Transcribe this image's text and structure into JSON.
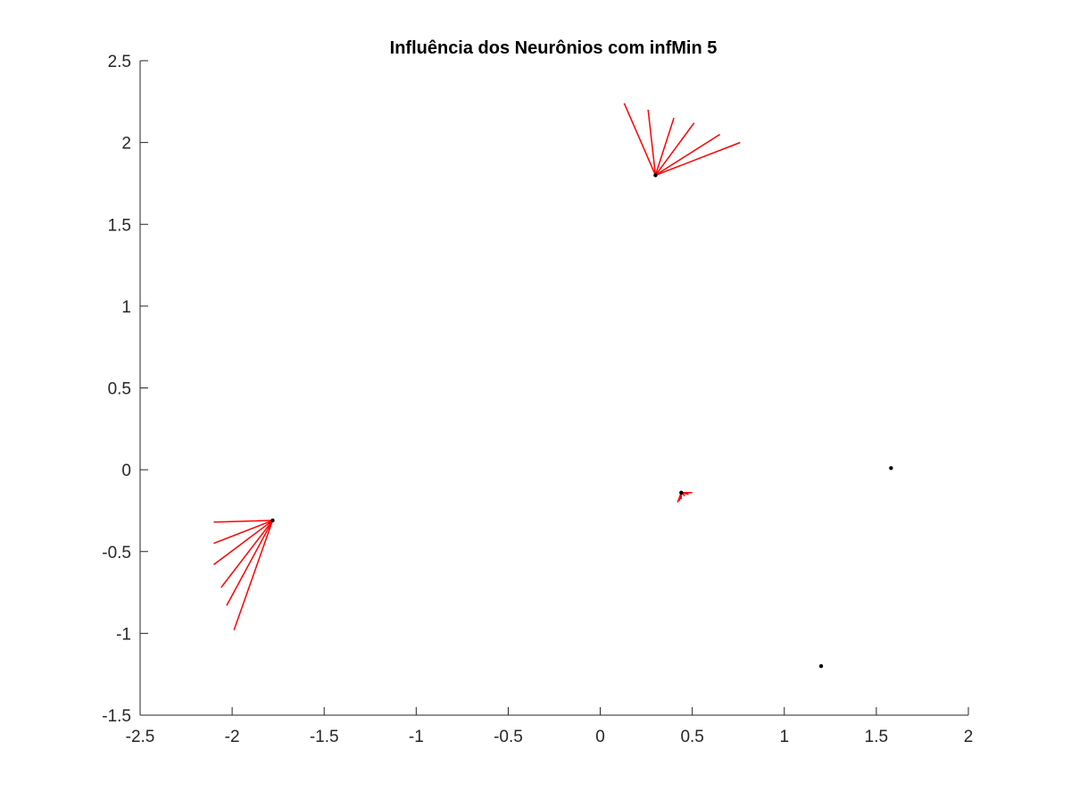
{
  "chart_data": {
    "type": "scatter",
    "title": "Influência dos Neurônios com infMin 5",
    "xlabel": "",
    "ylabel": "",
    "xlim": [
      -2.5,
      2
    ],
    "ylim": [
      -1.5,
      2.5
    ],
    "x_ticks": [
      -2.5,
      -2,
      -1.5,
      -1,
      -0.5,
      0,
      0.5,
      1,
      1.5,
      2
    ],
    "x_tick_labels": [
      "-2.5",
      "-2",
      "-1.5",
      "-1",
      "-0.5",
      "0",
      "0.5",
      "1",
      "1.5",
      "2"
    ],
    "y_ticks": [
      -1.5,
      -1,
      -0.5,
      0,
      0.5,
      1,
      1.5,
      2,
      2.5
    ],
    "y_tick_labels": [
      "-1.5",
      "-1",
      "-0.5",
      "0",
      "0.5",
      "1",
      "1.5",
      "2",
      "2.5"
    ],
    "grid": false,
    "colors": {
      "influence_lines": "#ff0000",
      "neurons": "#000000",
      "axes": "#262626"
    },
    "neurons": [
      {
        "x": 0.3,
        "y": 1.8,
        "influence_endpoints": [
          [
            0.13,
            2.24
          ],
          [
            0.26,
            2.2
          ],
          [
            0.4,
            2.15
          ],
          [
            0.51,
            2.12
          ],
          [
            0.65,
            2.05
          ],
          [
            0.76,
            2.0
          ]
        ]
      },
      {
        "x": -1.78,
        "y": -0.31,
        "influence_endpoints": [
          [
            -2.1,
            -0.32
          ],
          [
            -2.1,
            -0.45
          ],
          [
            -2.1,
            -0.58
          ],
          [
            -2.06,
            -0.72
          ],
          [
            -2.03,
            -0.83
          ],
          [
            -1.99,
            -0.98
          ]
        ]
      },
      {
        "x": 0.44,
        "y": -0.14,
        "influence_endpoints": [
          [
            0.42,
            -0.2
          ],
          [
            0.43,
            -0.19
          ],
          [
            0.44,
            -0.18
          ],
          [
            0.46,
            -0.16
          ],
          [
            0.48,
            -0.15
          ],
          [
            0.5,
            -0.14
          ]
        ]
      },
      {
        "x": 1.58,
        "y": 0.01,
        "influence_endpoints": []
      },
      {
        "x": 1.2,
        "y": -1.2,
        "influence_endpoints": []
      }
    ]
  }
}
